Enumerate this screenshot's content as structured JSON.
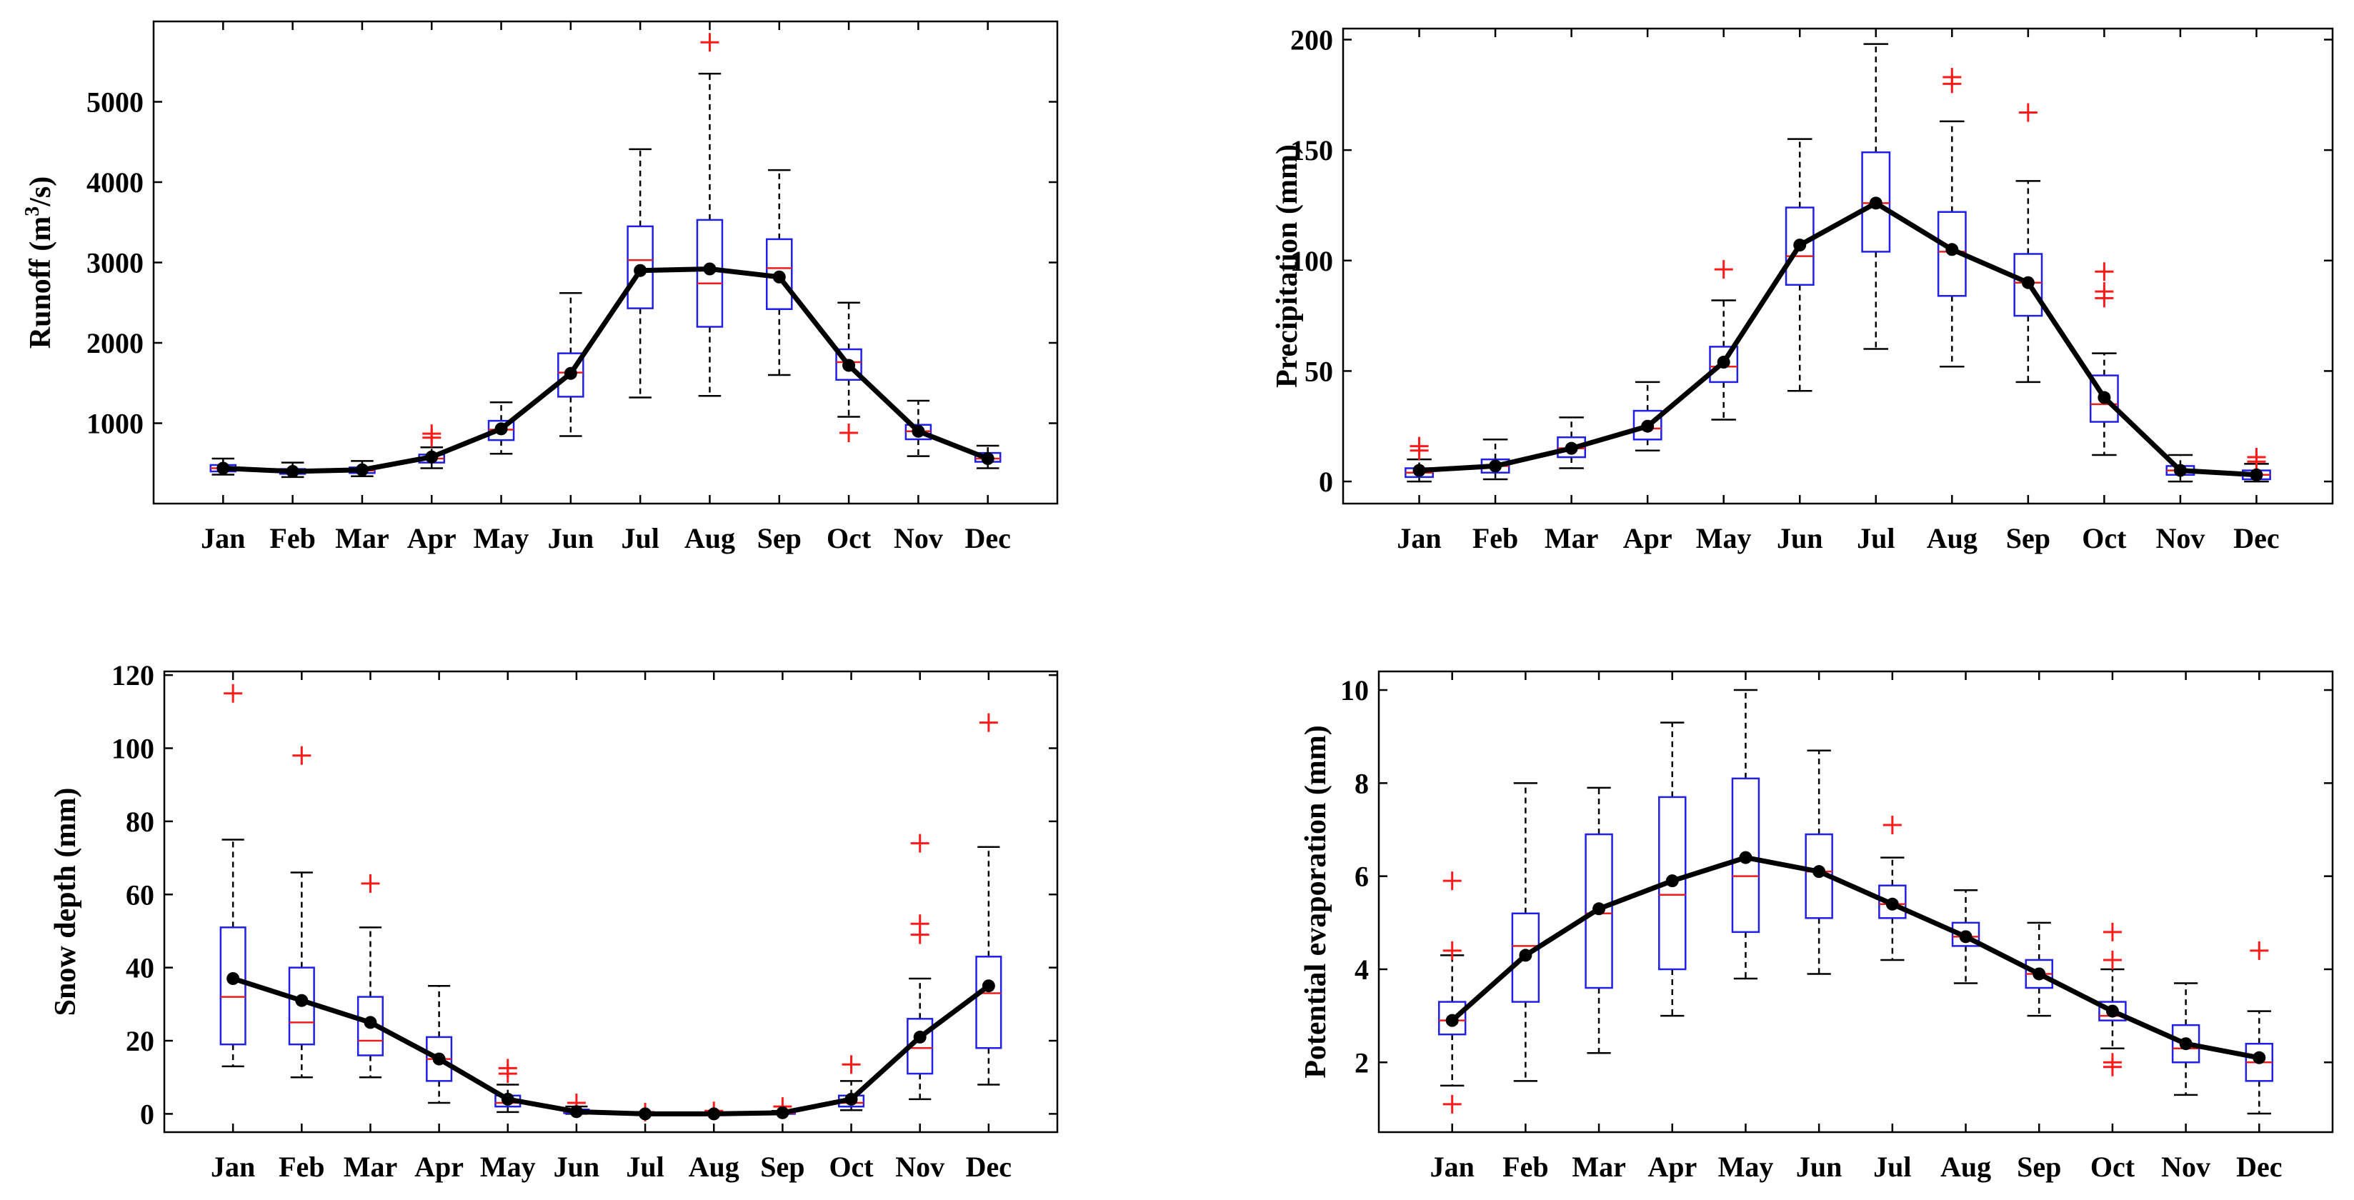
{
  "chart_data": [
    {
      "id": "runoff",
      "type": "boxplot",
      "ylabel": "Runoff (m³/s)",
      "ylabel_main": "Runoff (m",
      "ylabel_sup": "3",
      "ylabel_tail": "/s)",
      "ylim": [
        0,
        6000
      ],
      "yticks": [
        1000,
        2000,
        3000,
        4000,
        5000
      ],
      "categories": [
        "Jan",
        "Feb",
        "Mar",
        "Apr",
        "May",
        "Jun",
        "Jul",
        "Aug",
        "Sep",
        "Oct",
        "Nov",
        "Dec"
      ],
      "boxes": [
        {
          "min": 360,
          "q1": 400,
          "median": 440,
          "q3": 480,
          "max": 560,
          "outliers": []
        },
        {
          "min": 330,
          "q1": 370,
          "median": 400,
          "q3": 430,
          "max": 510,
          "outliers": []
        },
        {
          "min": 340,
          "q1": 380,
          "median": 410,
          "q3": 450,
          "max": 530,
          "outliers": []
        },
        {
          "min": 440,
          "q1": 510,
          "median": 560,
          "q3": 610,
          "max": 700,
          "outliers": [
            820,
            870
          ]
        },
        {
          "min": 620,
          "q1": 790,
          "median": 920,
          "q3": 1030,
          "max": 1260,
          "outliers": []
        },
        {
          "min": 840,
          "q1": 1330,
          "median": 1630,
          "q3": 1870,
          "max": 2620,
          "outliers": []
        },
        {
          "min": 1320,
          "q1": 2430,
          "median": 3030,
          "q3": 3450,
          "max": 4410,
          "outliers": []
        },
        {
          "min": 1340,
          "q1": 2200,
          "median": 2740,
          "q3": 3530,
          "max": 5350,
          "outliers": [
            5740
          ]
        },
        {
          "min": 1600,
          "q1": 2420,
          "median": 2930,
          "q3": 3290,
          "max": 4150,
          "outliers": []
        },
        {
          "min": 1080,
          "q1": 1540,
          "median": 1760,
          "q3": 1920,
          "max": 2500,
          "outliers": [
            880
          ]
        },
        {
          "min": 590,
          "q1": 800,
          "median": 900,
          "q3": 980,
          "max": 1280,
          "outliers": []
        },
        {
          "min": 440,
          "q1": 520,
          "median": 560,
          "q3": 630,
          "max": 720,
          "outliers": []
        }
      ],
      "means": [
        440,
        400,
        420,
        580,
        930,
        1620,
        2900,
        2920,
        2820,
        1720,
        900,
        560
      ]
    },
    {
      "id": "precipitation",
      "type": "boxplot",
      "ylabel": "Precipitation (mm)",
      "ylim": [
        -10,
        205
      ],
      "yticks": [
        0,
        50,
        100,
        150,
        200
      ],
      "categories": [
        "Jan",
        "Feb",
        "Mar",
        "Apr",
        "May",
        "Jun",
        "Jul",
        "Aug",
        "Sep",
        "Oct",
        "Nov",
        "Dec"
      ],
      "boxes": [
        {
          "min": 0,
          "q1": 2,
          "median": 4,
          "q3": 6,
          "max": 10,
          "outliers": [
            14,
            16
          ]
        },
        {
          "min": 1,
          "q1": 4,
          "median": 7,
          "q3": 10,
          "max": 19,
          "outliers": []
        },
        {
          "min": 6,
          "q1": 11,
          "median": 15,
          "q3": 20,
          "max": 29,
          "outliers": []
        },
        {
          "min": 14,
          "q1": 19,
          "median": 24,
          "q3": 32,
          "max": 45,
          "outliers": []
        },
        {
          "min": 28,
          "q1": 45,
          "median": 52,
          "q3": 61,
          "max": 82,
          "outliers": [
            96
          ]
        },
        {
          "min": 41,
          "q1": 89,
          "median": 102,
          "q3": 124,
          "max": 155,
          "outliers": []
        },
        {
          "min": 60,
          "q1": 104,
          "median": 126,
          "q3": 149,
          "max": 198,
          "outliers": []
        },
        {
          "min": 52,
          "q1": 84,
          "median": 104,
          "q3": 122,
          "max": 163,
          "outliers": [
            180,
            183
          ]
        },
        {
          "min": 45,
          "q1": 75,
          "median": 90,
          "q3": 103,
          "max": 136,
          "outliers": [
            167
          ]
        },
        {
          "min": 12,
          "q1": 27,
          "median": 35,
          "q3": 48,
          "max": 58,
          "outliers": [
            83,
            86,
            95
          ]
        },
        {
          "min": 0,
          "q1": 3,
          "median": 5,
          "q3": 7,
          "max": 12,
          "outliers": []
        },
        {
          "min": 0,
          "q1": 1,
          "median": 3,
          "q3": 5,
          "max": 8,
          "outliers": [
            9,
            11
          ]
        }
      ],
      "means": [
        5,
        7,
        15,
        25,
        54,
        107,
        126,
        105,
        90,
        38,
        5,
        3
      ]
    },
    {
      "id": "snow-depth",
      "type": "boxplot",
      "ylabel": "Snow depth (mm)",
      "ylim": [
        -5,
        121
      ],
      "yticks": [
        0,
        20,
        40,
        60,
        80,
        100,
        120
      ],
      "categories": [
        "Jan",
        "Feb",
        "Mar",
        "Apr",
        "May",
        "Jun",
        "Jul",
        "Aug",
        "Sep",
        "Oct",
        "Nov",
        "Dec"
      ],
      "boxes": [
        {
          "min": 13,
          "q1": 19,
          "median": 32,
          "q3": 51,
          "max": 75,
          "outliers": [
            115
          ]
        },
        {
          "min": 10,
          "q1": 19,
          "median": 25,
          "q3": 40,
          "max": 66,
          "outliers": [
            98
          ]
        },
        {
          "min": 10,
          "q1": 16,
          "median": 20,
          "q3": 32,
          "max": 51,
          "outliers": [
            63
          ]
        },
        {
          "min": 3,
          "q1": 9,
          "median": 15,
          "q3": 21,
          "max": 35,
          "outliers": []
        },
        {
          "min": 0.5,
          "q1": 2,
          "median": 3,
          "q3": 5,
          "max": 8,
          "outliers": [
            11,
            12.5
          ]
        },
        {
          "min": 0,
          "q1": 0.2,
          "median": 0.6,
          "q3": 1.2,
          "max": 2,
          "outliers": [
            3
          ]
        },
        {
          "min": 0,
          "q1": 0,
          "median": 0,
          "q3": 0,
          "max": 0,
          "outliers": [
            0.5
          ]
        },
        {
          "min": 0,
          "q1": 0,
          "median": 0,
          "q3": 0.2,
          "max": 0.4,
          "outliers": [
            0.8
          ]
        },
        {
          "min": 0,
          "q1": 0,
          "median": 0.2,
          "q3": 0.5,
          "max": 0.8,
          "outliers": [
            2
          ]
        },
        {
          "min": 1,
          "q1": 2,
          "median": 3,
          "q3": 5,
          "max": 9,
          "outliers": [
            13.5
          ]
        },
        {
          "min": 4,
          "q1": 11,
          "median": 18,
          "q3": 26,
          "max": 37,
          "outliers": [
            49,
            52,
            74
          ]
        },
        {
          "min": 8,
          "q1": 18,
          "median": 33,
          "q3": 43,
          "max": 73,
          "outliers": [
            107
          ]
        }
      ],
      "means": [
        37,
        31,
        25,
        15,
        4,
        0.6,
        0,
        0,
        0.3,
        4,
        21,
        35
      ]
    },
    {
      "id": "potential-evaporation",
      "type": "boxplot",
      "ylabel": "Potential evaporation (mm)",
      "ylim": [
        0.5,
        10.4
      ],
      "yticks": [
        2,
        4,
        6,
        8,
        10
      ],
      "categories": [
        "Jan",
        "Feb",
        "Mar",
        "Apr",
        "May",
        "Jun",
        "Jul",
        "Aug",
        "Sep",
        "Oct",
        "Nov",
        "Dec"
      ],
      "boxes": [
        {
          "min": 1.5,
          "q1": 2.6,
          "median": 2.9,
          "q3": 3.3,
          "max": 4.3,
          "outliers": [
            1.1,
            4.4,
            5.9
          ]
        },
        {
          "min": 1.6,
          "q1": 3.3,
          "median": 4.5,
          "q3": 5.2,
          "max": 8.0,
          "outliers": []
        },
        {
          "min": 2.2,
          "q1": 3.6,
          "median": 5.2,
          "q3": 6.9,
          "max": 7.9,
          "outliers": []
        },
        {
          "min": 3.0,
          "q1": 4.0,
          "median": 5.6,
          "q3": 7.7,
          "max": 9.3,
          "outliers": []
        },
        {
          "min": 3.8,
          "q1": 4.8,
          "median": 6.0,
          "q3": 8.1,
          "max": 10.0,
          "outliers": []
        },
        {
          "min": 3.9,
          "q1": 5.1,
          "median": 6.1,
          "q3": 6.9,
          "max": 8.7,
          "outliers": []
        },
        {
          "min": 4.2,
          "q1": 5.1,
          "median": 5.4,
          "q3": 5.8,
          "max": 6.4,
          "outliers": [
            7.1
          ]
        },
        {
          "min": 3.7,
          "q1": 4.5,
          "median": 4.7,
          "q3": 5.0,
          "max": 5.7,
          "outliers": []
        },
        {
          "min": 3.0,
          "q1": 3.6,
          "median": 3.9,
          "q3": 4.2,
          "max": 5.0,
          "outliers": []
        },
        {
          "min": 2.3,
          "q1": 2.9,
          "median": 3.0,
          "q3": 3.3,
          "max": 4.0,
          "outliers": [
            1.9,
            2.0,
            4.2,
            4.8
          ]
        },
        {
          "min": 1.3,
          "q1": 2.0,
          "median": 2.3,
          "q3": 2.8,
          "max": 3.7,
          "outliers": []
        },
        {
          "min": 0.9,
          "q1": 1.6,
          "median": 2.0,
          "q3": 2.4,
          "max": 3.1,
          "outliers": [
            4.4
          ]
        }
      ],
      "means": [
        2.9,
        4.3,
        5.3,
        5.9,
        6.4,
        6.1,
        5.4,
        4.7,
        3.9,
        3.1,
        2.4,
        2.1
      ]
    }
  ]
}
